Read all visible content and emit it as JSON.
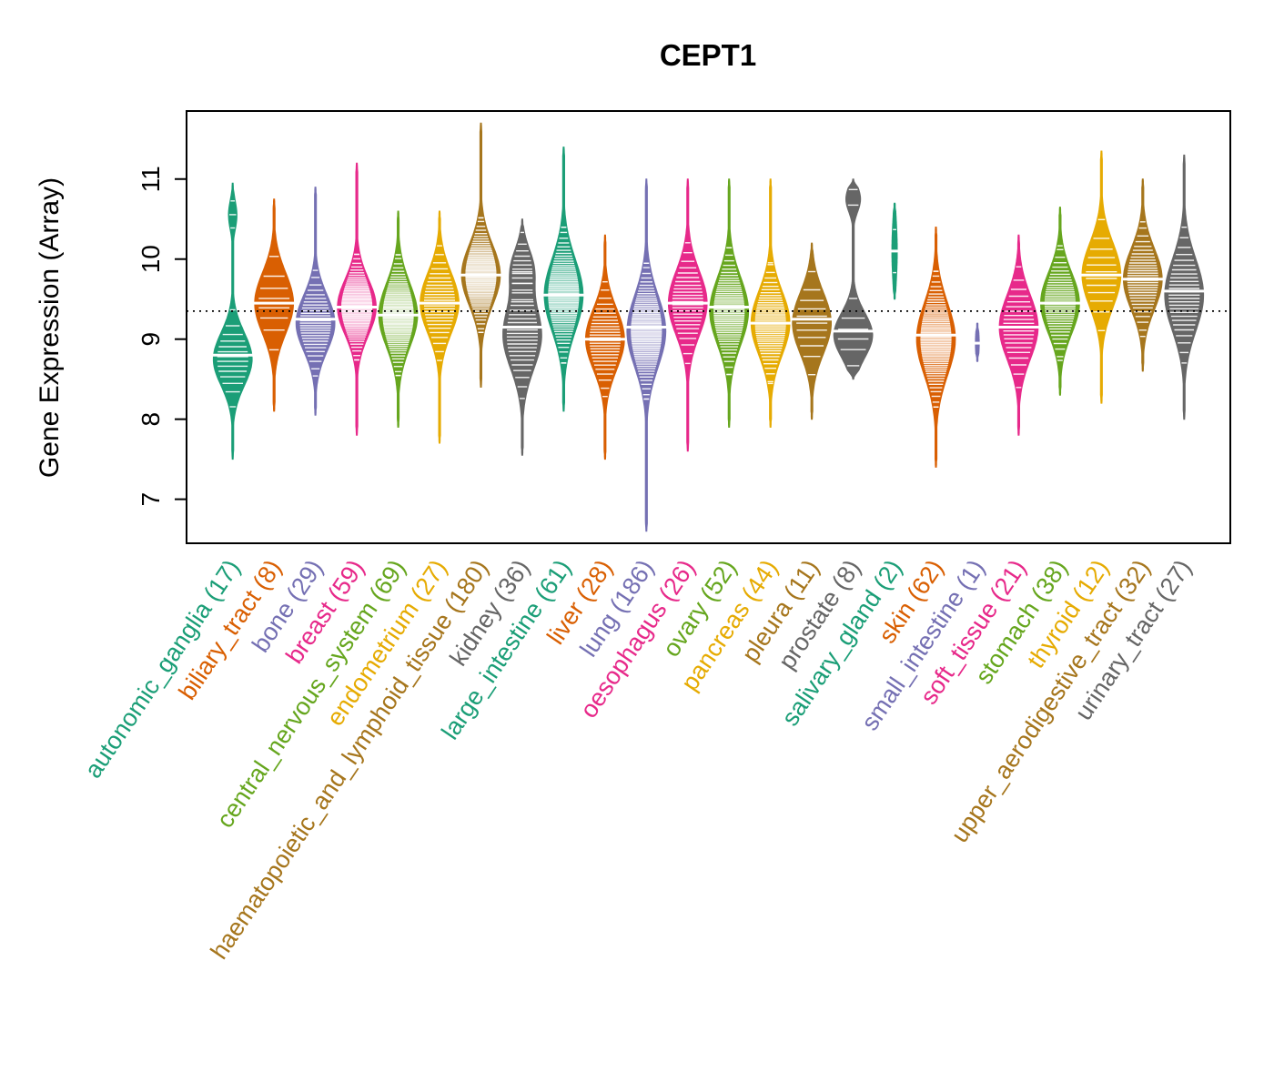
{
  "title": "CEPT1",
  "chart_data": {
    "type": "violin",
    "title": "CEPT1",
    "xlabel": "",
    "ylabel": "Gene Expression (Array)",
    "ylim": [
      6.45,
      11.85
    ],
    "yticks": [
      7,
      8,
      9,
      10,
      11
    ],
    "reference_line": 9.35,
    "grid": false,
    "legend_position": "none",
    "palette": [
      "#1B9E77",
      "#D95F02",
      "#7570B3",
      "#E7298A",
      "#66A61E",
      "#E6AB02",
      "#A6761D",
      "#666666"
    ],
    "groups": [
      {
        "label": "autonomic_ganglia",
        "n": 17,
        "color": "#1B9E77",
        "median": 8.8,
        "min": 7.5,
        "max": 10.95,
        "modes": [
          {
            "center": 8.75,
            "sigma": 0.33,
            "weight": 1
          },
          {
            "center": 10.55,
            "sigma": 0.18,
            "weight": 0.22
          }
        ]
      },
      {
        "label": "biliary_tract",
        "n": 8,
        "color": "#D95F02",
        "median": 9.45,
        "min": 8.1,
        "max": 10.75,
        "modes": [
          {
            "center": 9.45,
            "sigma": 0.38,
            "weight": 1
          }
        ]
      },
      {
        "label": "bone",
        "n": 29,
        "color": "#7570B3",
        "median": 9.25,
        "min": 8.05,
        "max": 10.9,
        "modes": [
          {
            "center": 9.2,
            "sigma": 0.35,
            "weight": 1
          }
        ]
      },
      {
        "label": "breast",
        "n": 59,
        "color": "#E7298A",
        "median": 9.4,
        "min": 7.8,
        "max": 11.2,
        "modes": [
          {
            "center": 9.4,
            "sigma": 0.35,
            "weight": 1
          }
        ]
      },
      {
        "label": "central_nervous_system",
        "n": 69,
        "color": "#66A61E",
        "median": 9.3,
        "min": 7.9,
        "max": 10.6,
        "modes": [
          {
            "center": 9.3,
            "sigma": 0.4,
            "weight": 1
          }
        ]
      },
      {
        "label": "endometrium",
        "n": 27,
        "color": "#E6AB02",
        "median": 9.45,
        "min": 7.7,
        "max": 10.6,
        "modes": [
          {
            "center": 9.45,
            "sigma": 0.38,
            "weight": 1
          }
        ]
      },
      {
        "label": "haematopoietic_and_lymphoid_tissue",
        "n": 180,
        "color": "#A6761D",
        "median": 9.8,
        "min": 8.4,
        "max": 11.7,
        "modes": [
          {
            "center": 9.8,
            "sigma": 0.38,
            "weight": 1
          }
        ]
      },
      {
        "label": "kidney",
        "n": 36,
        "color": "#666666",
        "median": 9.15,
        "min": 7.55,
        "max": 10.5,
        "modes": [
          {
            "center": 9.05,
            "sigma": 0.42,
            "weight": 1
          },
          {
            "center": 9.9,
            "sigma": 0.25,
            "weight": 0.5
          }
        ]
      },
      {
        "label": "large_intestine",
        "n": 61,
        "color": "#1B9E77",
        "median": 9.55,
        "min": 8.1,
        "max": 11.4,
        "modes": [
          {
            "center": 9.55,
            "sigma": 0.45,
            "weight": 1
          }
        ]
      },
      {
        "label": "liver",
        "n": 28,
        "color": "#D95F02",
        "median": 9.0,
        "min": 7.5,
        "max": 10.3,
        "modes": [
          {
            "center": 9.0,
            "sigma": 0.38,
            "weight": 1
          }
        ]
      },
      {
        "label": "lung",
        "n": 186,
        "color": "#7570B3",
        "median": 9.15,
        "min": 6.6,
        "max": 11.0,
        "modes": [
          {
            "center": 9.1,
            "sigma": 0.45,
            "weight": 1
          }
        ]
      },
      {
        "label": "oesophagus",
        "n": 26,
        "color": "#E7298A",
        "median": 9.45,
        "min": 7.6,
        "max": 11.0,
        "modes": [
          {
            "center": 9.45,
            "sigma": 0.4,
            "weight": 1
          }
        ]
      },
      {
        "label": "ovary",
        "n": 52,
        "color": "#66A61E",
        "median": 9.4,
        "min": 7.9,
        "max": 11.0,
        "modes": [
          {
            "center": 9.35,
            "sigma": 0.42,
            "weight": 1
          }
        ]
      },
      {
        "label": "pancreas",
        "n": 44,
        "color": "#E6AB02",
        "median": 9.2,
        "min": 7.9,
        "max": 11.0,
        "modes": [
          {
            "center": 9.2,
            "sigma": 0.4,
            "weight": 1
          }
        ]
      },
      {
        "label": "pleura",
        "n": 11,
        "color": "#A6761D",
        "median": 9.25,
        "min": 8.0,
        "max": 10.2,
        "modes": [
          {
            "center": 9.2,
            "sigma": 0.38,
            "weight": 1
          }
        ]
      },
      {
        "label": "prostate",
        "n": 8,
        "color": "#666666",
        "median": 9.1,
        "min": 8.5,
        "max": 11.0,
        "modes": [
          {
            "center": 9.05,
            "sigma": 0.28,
            "weight": 1
          },
          {
            "center": 10.75,
            "sigma": 0.16,
            "weight": 0.38
          }
        ]
      },
      {
        "label": "salivary_gland",
        "n": 2,
        "color": "#1B9E77",
        "median": 10.1,
        "min": 9.5,
        "max": 10.7,
        "width": 0.14,
        "modes": [
          {
            "center": 10.1,
            "sigma": 0.4,
            "weight": 1
          }
        ]
      },
      {
        "label": "skin",
        "n": 62,
        "color": "#D95F02",
        "median": 9.05,
        "min": 7.4,
        "max": 10.4,
        "modes": [
          {
            "center": 9.0,
            "sigma": 0.45,
            "weight": 1
          }
        ]
      },
      {
        "label": "small_intestine",
        "n": 1,
        "color": "#7570B3",
        "median": 8.95,
        "min": 8.72,
        "max": 9.2,
        "width": 0.1,
        "modes": [
          {
            "center": 8.95,
            "sigma": 0.2,
            "weight": 1
          }
        ]
      },
      {
        "label": "soft_tissue",
        "n": 21,
        "color": "#E7298A",
        "median": 9.15,
        "min": 7.8,
        "max": 10.3,
        "modes": [
          {
            "center": 9.15,
            "sigma": 0.4,
            "weight": 1
          }
        ]
      },
      {
        "label": "stomach",
        "n": 38,
        "color": "#66A61E",
        "median": 9.45,
        "min": 8.3,
        "max": 10.65,
        "modes": [
          {
            "center": 9.45,
            "sigma": 0.38,
            "weight": 1
          }
        ]
      },
      {
        "label": "thyroid",
        "n": 12,
        "color": "#E6AB02",
        "median": 9.8,
        "min": 8.2,
        "max": 11.35,
        "modes": [
          {
            "center": 9.8,
            "sigma": 0.4,
            "weight": 1
          }
        ]
      },
      {
        "label": "upper_aerodigestive_tract",
        "n": 32,
        "color": "#A6761D",
        "median": 9.75,
        "min": 8.6,
        "max": 11.0,
        "modes": [
          {
            "center": 9.75,
            "sigma": 0.38,
            "weight": 1
          }
        ]
      },
      {
        "label": "urinary_tract",
        "n": 27,
        "color": "#666666",
        "median": 9.6,
        "min": 8.0,
        "max": 11.3,
        "modes": [
          {
            "center": 9.55,
            "sigma": 0.45,
            "weight": 1
          }
        ]
      }
    ]
  }
}
